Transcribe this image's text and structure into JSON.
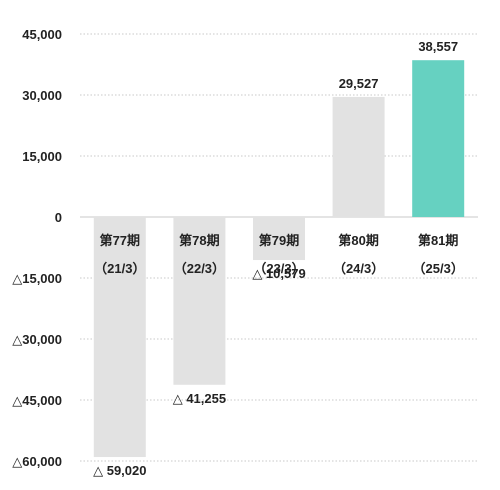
{
  "chart_data": {
    "type": "bar",
    "title": "",
    "xlabel": "",
    "ylabel": "",
    "ylim": [
      -60000,
      45000
    ],
    "y_ticks": [
      {
        "value": 45000,
        "label": "45,000"
      },
      {
        "value": 30000,
        "label": "30,000"
      },
      {
        "value": 15000,
        "label": "15,000"
      },
      {
        "value": 0,
        "label": "0"
      },
      {
        "value": -15000,
        "label": "△15,000"
      },
      {
        "value": -30000,
        "label": "△30,000"
      },
      {
        "value": -45000,
        "label": "△45,000"
      },
      {
        "value": -60000,
        "label": "△60,000"
      }
    ],
    "categories": [
      {
        "period": "第77期",
        "date": "（21/3）"
      },
      {
        "period": "第78期",
        "date": "（22/3）"
      },
      {
        "period": "第79期",
        "date": "（23/3）"
      },
      {
        "period": "第80期",
        "date": "（24/3）"
      },
      {
        "period": "第81期",
        "date": "（25/3）"
      }
    ],
    "values": [
      -59020,
      -41255,
      -10579,
      29527,
      38557
    ],
    "value_labels": [
      "△ 59,020",
      "△ 41,255",
      "△ 10,579",
      "29,527",
      "38,557"
    ],
    "bar_colors": [
      "#e2e2e2",
      "#e2e2e2",
      "#e2e2e2",
      "#e2e2e2",
      "#66d1c1"
    ],
    "grid": true
  }
}
